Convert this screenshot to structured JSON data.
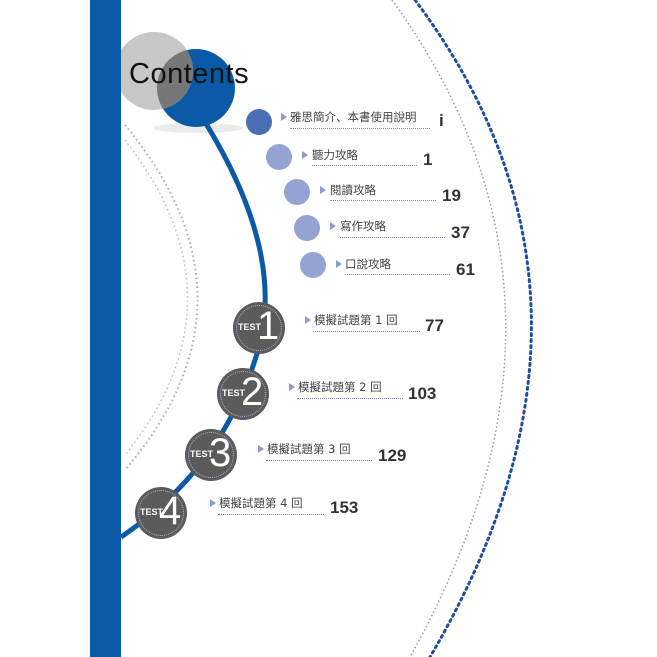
{
  "title": "Contents",
  "colors": {
    "accent_blue": "#0b5aa8",
    "bubble_dark": "#4a6fb5",
    "bubble_light": "#8f9fd0",
    "test_gray": "#5b5b5c"
  },
  "entries": [
    {
      "label": "雅思簡介、本書使用說明",
      "page": "i"
    },
    {
      "label": "聽力攻略",
      "page": "1"
    },
    {
      "label": "閱讀攻略",
      "page": "19"
    },
    {
      "label": "寫作攻略",
      "page": "37"
    },
    {
      "label": "口說攻略",
      "page": "61"
    }
  ],
  "tests": [
    {
      "badge": "TEST",
      "number": "1",
      "label": "模擬試題第 1 回",
      "page": "77"
    },
    {
      "badge": "TEST",
      "number": "2",
      "label": "模擬試題第 2 回",
      "page": "103"
    },
    {
      "badge": "TEST",
      "number": "3",
      "label": "模擬試題第 3 回",
      "page": "129"
    },
    {
      "badge": "TEST",
      "number": "4",
      "label": "模擬試題第 4 回",
      "page": "153"
    }
  ]
}
